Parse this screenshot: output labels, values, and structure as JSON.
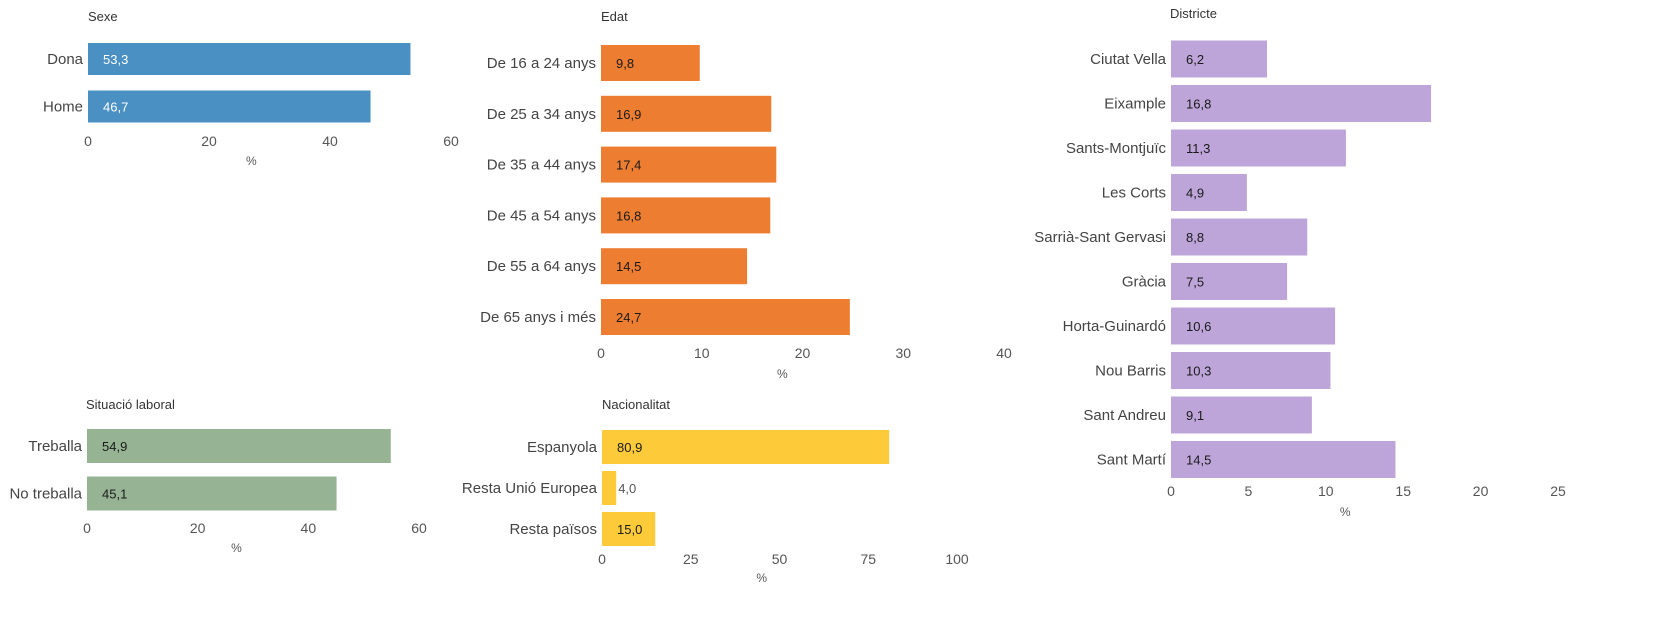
{
  "chart_data": [
    {
      "type": "bar",
      "title": "Sexe",
      "categories": [
        "Dona",
        "Home"
      ],
      "values": [
        53.3,
        46.7
      ],
      "labels": [
        "53,3",
        "46,7"
      ],
      "xlim": [
        0,
        60
      ],
      "ticks": [
        0,
        20,
        40,
        60
      ],
      "xlabel": "%",
      "color": "#4a90c2",
      "label_color": "#ffffff"
    },
    {
      "type": "bar",
      "title": "Edat",
      "categories": [
        "De 16 a 24 anys",
        "De 25 a 34 anys",
        "De 35 a 44 anys",
        "De 45 a 54 anys",
        "De 55 a 64 anys",
        "De 65 anys i més"
      ],
      "values": [
        9.8,
        16.9,
        17.4,
        16.8,
        14.5,
        24.7
      ],
      "labels": [
        "9,8",
        "16,9",
        "17,4",
        "16,8",
        "14,5",
        "24,7"
      ],
      "xlim": [
        0,
        40
      ],
      "ticks": [
        0,
        10,
        20,
        30,
        40
      ],
      "xlabel": "%",
      "color": "#ed7d31",
      "label_color": "#1a1a1a"
    },
    {
      "type": "bar",
      "title": "Districte",
      "categories": [
        "Ciutat Vella",
        "Eixample",
        "Sants-Montjuïc",
        "Les Corts",
        "Sarrià-Sant Gervasi",
        "Gràcia",
        "Horta-Guinardó",
        "Nou Barris",
        "Sant Andreu",
        "Sant Martí"
      ],
      "values": [
        6.2,
        16.8,
        11.3,
        4.9,
        8.8,
        7.5,
        10.6,
        10.3,
        9.1,
        14.5
      ],
      "labels": [
        "6,2",
        "16,8",
        "11,3",
        "4,9",
        "8,8",
        "7,5",
        "10,6",
        "10,3",
        "9,1",
        "14,5"
      ],
      "xlim": [
        0,
        25
      ],
      "ticks": [
        0,
        5,
        10,
        15,
        20,
        25
      ],
      "xlabel": "%",
      "color": "#bda5d9",
      "label_color": "#1a1a1a"
    },
    {
      "type": "bar",
      "title": "Situació laboral",
      "categories": [
        "Treballa",
        "No treballa"
      ],
      "values": [
        54.9,
        45.1
      ],
      "labels": [
        "54,9",
        "45,1"
      ],
      "xlim": [
        0,
        60
      ],
      "ticks": [
        0,
        20,
        40,
        60
      ],
      "xlabel": "%",
      "color": "#96b394",
      "label_color": "#1a1a1a"
    },
    {
      "type": "bar",
      "title": "Nacionalitat",
      "categories": [
        "Espanyola",
        "Resta Unió Europea",
        "Resta països"
      ],
      "values": [
        80.9,
        4.0,
        15.0
      ],
      "labels": [
        "80,9",
        "4,0",
        "15,0"
      ],
      "xlim": [
        0,
        100
      ],
      "ticks": [
        0,
        25,
        50,
        75,
        100
      ],
      "xlabel": "%",
      "color": "#fdcb3a",
      "label_color": "#1a1a1a"
    }
  ]
}
